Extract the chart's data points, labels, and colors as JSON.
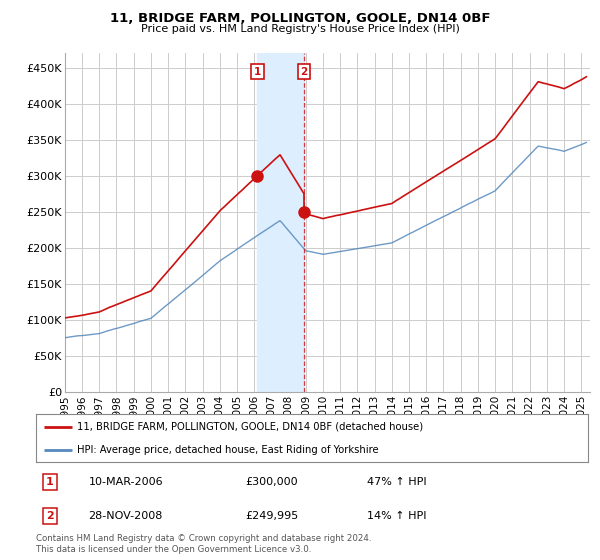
{
  "title": "11, BRIDGE FARM, POLLINGTON, GOOLE, DN14 0BF",
  "subtitle": "Price paid vs. HM Land Registry's House Price Index (HPI)",
  "xlim_start": 1995.0,
  "xlim_end": 2025.5,
  "ylim_min": 0,
  "ylim_max": 470000,
  "yticks": [
    0,
    50000,
    100000,
    150000,
    200000,
    250000,
    300000,
    350000,
    400000,
    450000
  ],
  "ytick_labels": [
    "£0",
    "£50K",
    "£100K",
    "£150K",
    "£200K",
    "£250K",
    "£300K",
    "£350K",
    "£400K",
    "£450K"
  ],
  "transaction1_date": 2006.19,
  "transaction1_price": 300000,
  "transaction1_label": "1",
  "transaction2_date": 2008.91,
  "transaction2_price": 249995,
  "transaction2_label": "2",
  "hpi_line_color": "#5588bb",
  "price_line_color": "#cc1111",
  "shaded_color": "#ddeeff",
  "vline_color": "#cc1111",
  "background_color": "#ffffff",
  "grid_color": "#cccccc",
  "legend1_label": "11, BRIDGE FARM, POLLINGTON, GOOLE, DN14 0BF (detached house)",
  "legend2_label": "HPI: Average price, detached house, East Riding of Yorkshire",
  "table_entries": [
    {
      "num": "1",
      "date": "10-MAR-2006",
      "price": "£300,000",
      "hpi": "47% ↑ HPI"
    },
    {
      "num": "2",
      "date": "28-NOV-2008",
      "price": "£249,995",
      "hpi": "14% ↑ HPI"
    }
  ],
  "footnote": "Contains HM Land Registry data © Crown copyright and database right 2024.\nThis data is licensed under the Open Government Licence v3.0.",
  "xtick_years": [
    1995,
    1996,
    1997,
    1998,
    1999,
    2000,
    2001,
    2002,
    2003,
    2004,
    2005,
    2006,
    2007,
    2008,
    2009,
    2010,
    2011,
    2012,
    2013,
    2014,
    2015,
    2016,
    2017,
    2018,
    2019,
    2020,
    2021,
    2022,
    2023,
    2024,
    2025
  ]
}
